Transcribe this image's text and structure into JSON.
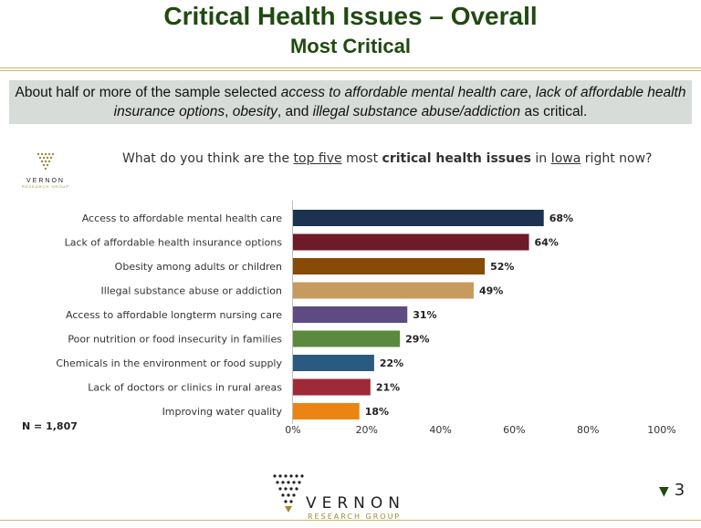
{
  "header": {
    "title": "Critical Health Issues – Overall",
    "subtitle": "Most Critical"
  },
  "summary": {
    "part1": "About half or more of the sample selected ",
    "em1": "access to affordable mental health care",
    "part2": ", ",
    "em2": "lack of affordable health insurance options",
    "part3": ", ",
    "em3": "obesity",
    "part4": ", and ",
    "em4": "illegal substance abuse/addiction",
    "part5": " as critical."
  },
  "question": {
    "pre": "What do you think are the ",
    "u1": "top five",
    "mid": " most ",
    "b1": "critical health issues",
    "mid2": " in ",
    "u2": "Iowa",
    "post": " right now?"
  },
  "logo": {
    "word": "VERNON",
    "sub": "RESEARCH GROUP"
  },
  "sample": "N = 1,807",
  "page_number": "3",
  "chart_data": {
    "type": "bar",
    "orientation": "horizontal",
    "categories": [
      "Access to affordable mental health care",
      "Lack of affordable health insurance options",
      "Obesity among adults or children",
      "Illegal substance abuse or addiction",
      "Access to affordable longterm nursing care",
      "Poor nutrition or food insecurity in families",
      "Chemicals in the environment or food supply",
      "Lack of doctors or clinics in rural areas",
      "Improving water quality"
    ],
    "values": [
      68,
      64,
      52,
      49,
      31,
      29,
      22,
      21,
      18
    ],
    "value_labels": [
      "68%",
      "64%",
      "52%",
      "49%",
      "31%",
      "29%",
      "22%",
      "21%",
      "18%"
    ],
    "colors": [
      "#1b3350",
      "#6e1a28",
      "#874a08",
      "#c79a5e",
      "#5d4b82",
      "#5b8a3c",
      "#2a5a80",
      "#9e2a38",
      "#ec8414"
    ],
    "xlim": [
      0,
      100
    ],
    "xticks": [
      "0%",
      "20%",
      "40%",
      "60%",
      "80%",
      "100%"
    ],
    "grid": false
  }
}
